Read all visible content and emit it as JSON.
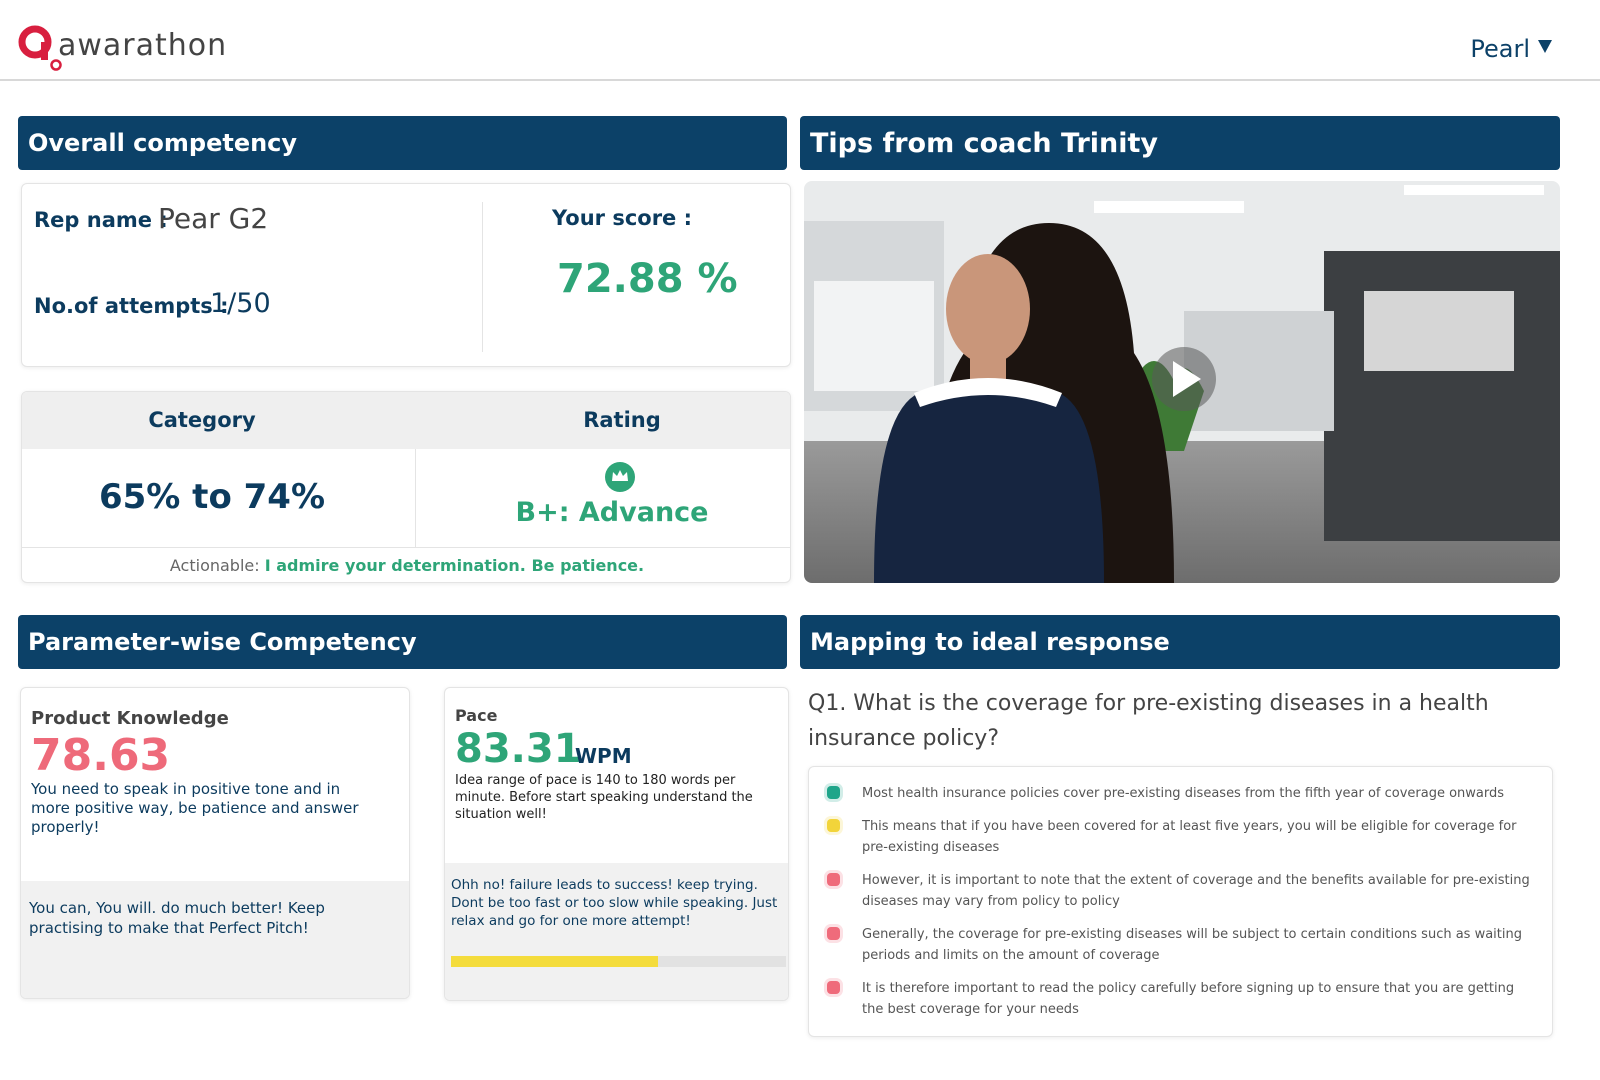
{
  "header": {
    "logo": "awarathon",
    "user": "Pearl"
  },
  "overall": {
    "title": "Overall competency",
    "rep_label": "Rep name :",
    "rep_name": "Pear G2",
    "attempts_label": "No.of attempts :",
    "attempts": "1/50",
    "score_label": "Your score :",
    "score": "72.88 %",
    "table": {
      "headers": [
        "Category",
        "Rating"
      ],
      "category": "65% to 74%",
      "rating": "B+: Advance",
      "actionable_label": "Actionable:",
      "actionable": "I admire your determination. Be patience."
    }
  },
  "tips": {
    "title": "Tips from coach Trinity"
  },
  "parameters": {
    "title": "Parameter-wise Competency",
    "cards": [
      {
        "name": "Product Knowledge",
        "value": "78.63",
        "description": "You need to speak in positive tone and in more positive way, be patience and answer properly!",
        "feedback": "You can, You will. do much better! Keep practising to make that Perfect Pitch!"
      },
      {
        "name": "Pace",
        "value": "83.31",
        "unit": "WPM",
        "description": "Idea range of pace is 140 to 180 words per minute. Before start speaking understand the situation well!",
        "feedback": "Ohh no! failure leads to success! keep trying. Dont be too fast or too slow while speaking. Just relax and go for one more attempt!"
      }
    ]
  },
  "mapping": {
    "title": "Mapping to ideal response",
    "question": "Q1. What is the coverage for pre-existing diseases in a health insurance policy?",
    "items": [
      {
        "text": "Most health insurance policies cover pre-existing diseases from the fifth year of coverage onwards",
        "color": "#1fa58a"
      },
      {
        "text": "This means that if you have been covered for at least five years, you will be eligible for coverage for pre-existing diseases",
        "color": "#f2d43a"
      },
      {
        "text": "However, it is important to note that the extent of coverage and the benefits available for pre-existing diseases may vary from policy to policy",
        "color": "#ef6b7b"
      },
      {
        "text": "Generally, the coverage for pre-existing diseases will be subject to certain conditions such as waiting periods and limits on the amount of coverage",
        "color": "#ef6b7b"
      },
      {
        "text": "It is therefore important to read the policy carefully before signing up to ensure that you are getting the best coverage for your needs",
        "color": "#ef6b7b"
      }
    ]
  }
}
